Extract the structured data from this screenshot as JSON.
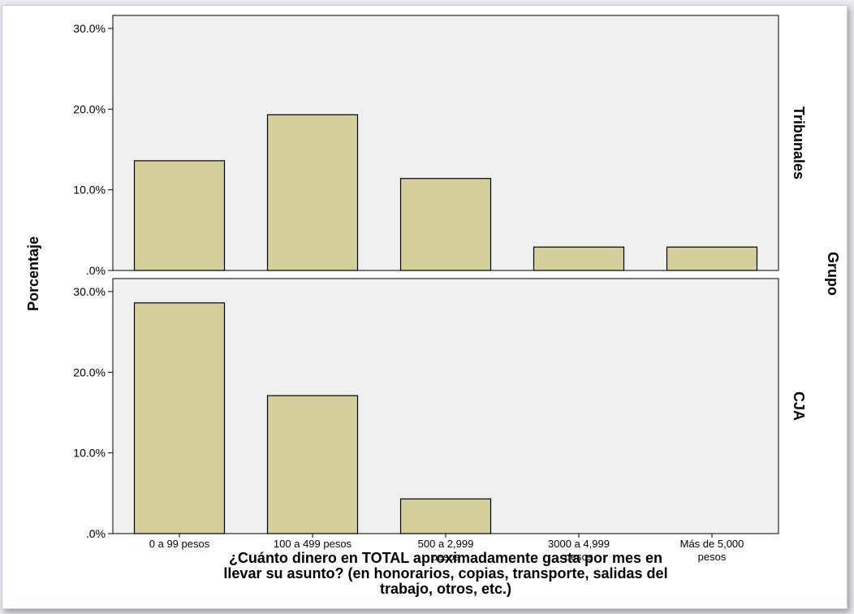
{
  "chart_data": {
    "type": "bar",
    "ylabel": "Porcentaje",
    "facet_label": "Grupo",
    "xlabel_lines": [
      "¿Cuánto dinero en TOTAL aproximadamente gasta por mes en",
      "llevar su asunto? (en honorarios, copias, transporte, salidas del",
      "trabajo, otros, etc.)"
    ],
    "categories": [
      [
        "0 a 99 pesos"
      ],
      [
        "100 a 499 pesos"
      ],
      [
        "500 a 2,999",
        "pesos"
      ],
      [
        "3000 a 4,999",
        "pesos"
      ],
      [
        "Más de 5,000",
        "pesos"
      ]
    ],
    "y_ticks": [
      "30.0%",
      "20.0%",
      "10.0%",
      ".0%"
    ],
    "ylim": [
      0,
      30
    ],
    "grid": false,
    "bar_color": "#d4d09c",
    "panel_bg": "#f0f0f0",
    "panels": [
      {
        "name": "Tribunales",
        "values": [
          13.6,
          19.3,
          11.4,
          2.9,
          2.9
        ]
      },
      {
        "name": "CJA",
        "values": [
          28.6,
          17.1,
          4.3,
          0,
          0
        ]
      }
    ]
  }
}
